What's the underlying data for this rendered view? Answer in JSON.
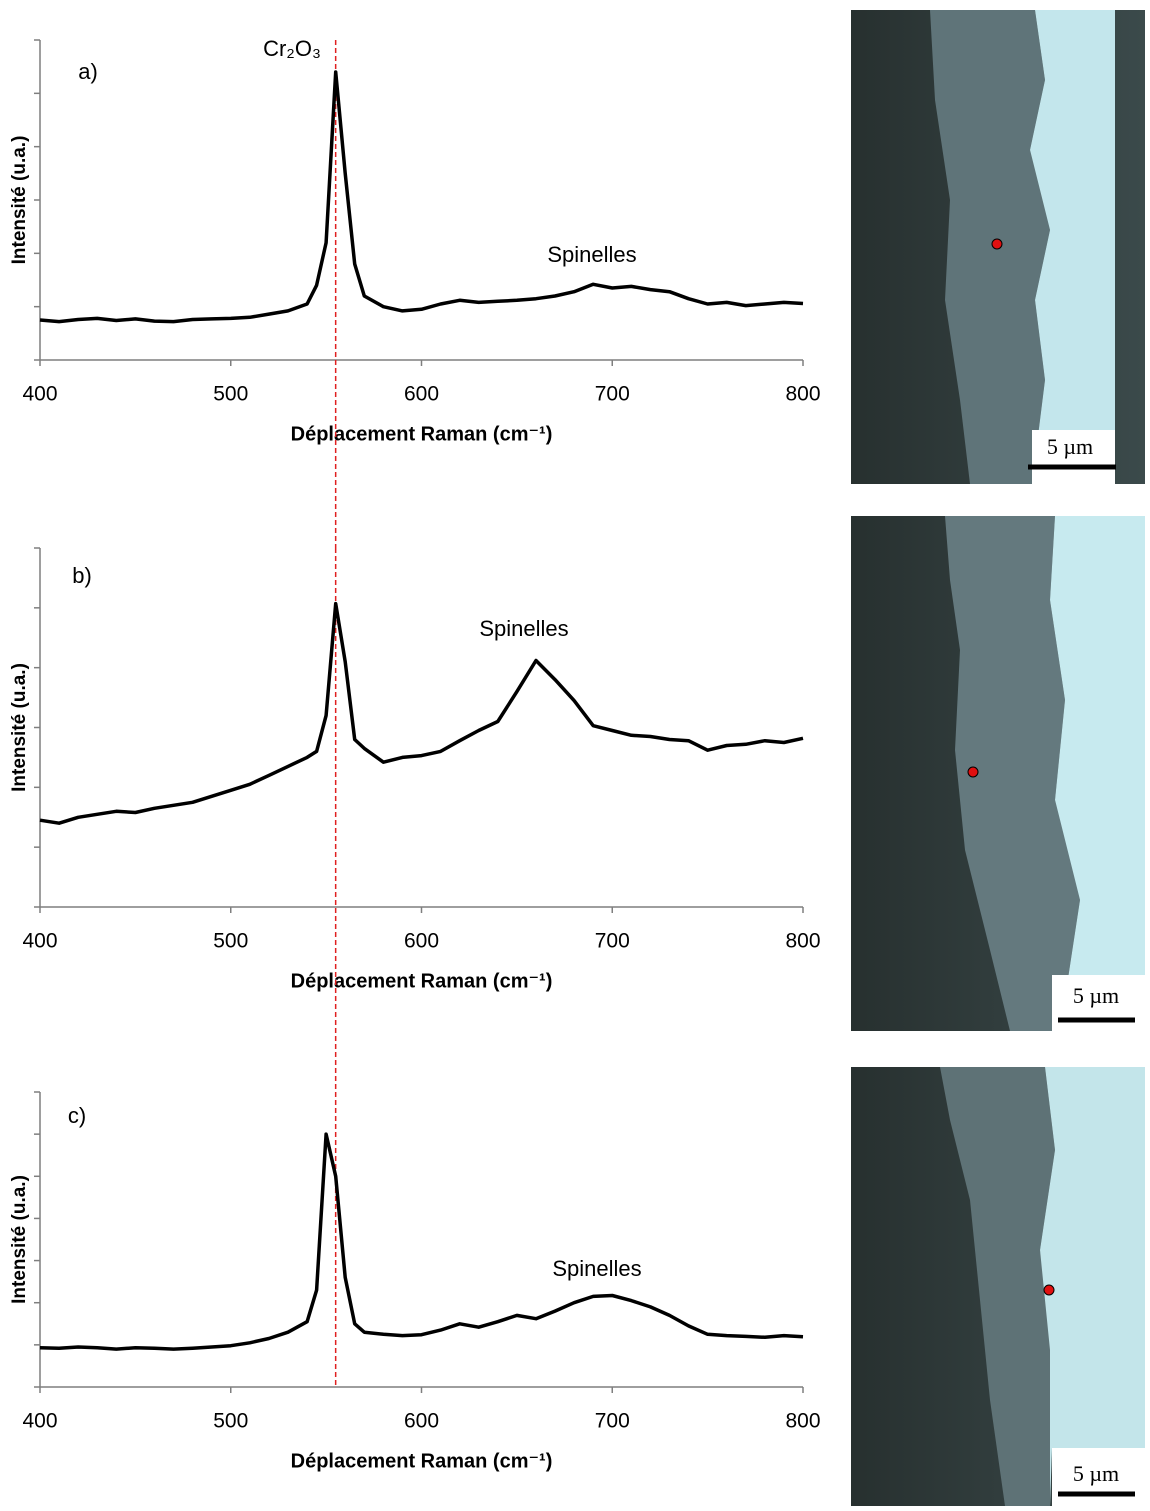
{
  "chart_data": [
    {
      "type": "line",
      "panel_label": "a)",
      "annotations": [
        "Cr₂O₃",
        "Spinelles"
      ],
      "x_label": "Déplacement Raman (cm⁻¹)",
      "y_label": "Intensité (u.a.)",
      "scale_bar_label": "5 µm",
      "x": [
        400,
        410,
        420,
        430,
        440,
        450,
        460,
        470,
        480,
        490,
        500,
        510,
        520,
        530,
        540,
        545,
        550,
        555,
        560,
        565,
        570,
        580,
        590,
        600,
        610,
        620,
        630,
        640,
        650,
        660,
        670,
        680,
        690,
        700,
        710,
        720,
        730,
        740,
        750,
        760,
        770,
        780,
        790,
        800
      ],
      "values": [
        0.75,
        0.72,
        0.76,
        0.78,
        0.74,
        0.77,
        0.73,
        0.72,
        0.76,
        0.77,
        0.78,
        0.8,
        0.86,
        0.92,
        1.05,
        1.4,
        2.2,
        5.4,
        3.5,
        1.8,
        1.2,
        1.0,
        0.92,
        0.95,
        1.05,
        1.12,
        1.08,
        1.1,
        1.12,
        1.15,
        1.2,
        1.28,
        1.42,
        1.35,
        1.38,
        1.32,
        1.28,
        1.15,
        1.05,
        1.08,
        1.02,
        1.05,
        1.08,
        1.06
      ],
      "color": "#000000",
      "vline": 555,
      "vline_color": "#e02020",
      "xlim": [
        400,
        800
      ],
      "xticks": [
        400,
        500,
        600,
        700,
        800
      ],
      "ylim": [
        0,
        6
      ],
      "yticks": [
        0,
        1,
        2,
        3,
        4,
        5,
        6
      ]
    },
    {
      "type": "line",
      "panel_label": "b)",
      "annotations": [
        "Spinelles"
      ],
      "x_label": "Déplacement Raman (cm⁻¹)",
      "y_label": "Intensité (u.a.)",
      "scale_bar_label": "5 µm",
      "x": [
        400,
        410,
        420,
        430,
        440,
        450,
        460,
        470,
        480,
        490,
        500,
        510,
        520,
        530,
        540,
        545,
        550,
        555,
        560,
        565,
        570,
        580,
        590,
        600,
        610,
        620,
        630,
        640,
        650,
        660,
        670,
        680,
        690,
        700,
        710,
        720,
        730,
        740,
        750,
        760,
        770,
        780,
        790,
        800
      ],
      "values": [
        1.45,
        1.4,
        1.5,
        1.55,
        1.6,
        1.58,
        1.65,
        1.7,
        1.75,
        1.85,
        1.95,
        2.05,
        2.2,
        2.35,
        2.5,
        2.6,
        3.2,
        5.07,
        4.1,
        2.8,
        2.65,
        2.42,
        2.5,
        2.53,
        2.6,
        2.78,
        2.95,
        3.1,
        3.6,
        4.12,
        3.8,
        3.45,
        3.03,
        2.95,
        2.87,
        2.85,
        2.8,
        2.78,
        2.62,
        2.7,
        2.72,
        2.78,
        2.75,
        2.82
      ],
      "color": "#000000",
      "vline": 555,
      "vline_color": "#e02020",
      "xlim": [
        400,
        800
      ],
      "xticks": [
        400,
        500,
        600,
        700,
        800
      ],
      "ylim": [
        0,
        6
      ],
      "yticks": [
        0,
        1,
        2,
        3,
        4,
        5,
        6
      ]
    },
    {
      "type": "line",
      "panel_label": "c)",
      "annotations": [
        "Spinelles"
      ],
      "x_label": "Déplacement Raman (cm⁻¹)",
      "y_label": "Intensité (u.a.)",
      "scale_bar_label": "5 µm",
      "x": [
        400,
        410,
        420,
        430,
        440,
        450,
        460,
        470,
        480,
        490,
        500,
        510,
        520,
        530,
        540,
        545,
        550,
        555,
        560,
        565,
        570,
        580,
        590,
        600,
        610,
        620,
        630,
        640,
        650,
        660,
        670,
        680,
        690,
        700,
        710,
        720,
        730,
        740,
        750,
        760,
        770,
        780,
        790,
        800
      ],
      "values": [
        0.93,
        0.92,
        0.95,
        0.93,
        0.9,
        0.93,
        0.92,
        0.9,
        0.92,
        0.95,
        0.98,
        1.05,
        1.15,
        1.3,
        1.55,
        2.3,
        6.0,
        5.0,
        2.6,
        1.5,
        1.3,
        1.25,
        1.22,
        1.24,
        1.35,
        1.5,
        1.42,
        1.55,
        1.7,
        1.62,
        1.8,
        2.0,
        2.15,
        2.17,
        2.05,
        1.9,
        1.7,
        1.45,
        1.25,
        1.22,
        1.2,
        1.18,
        1.22,
        1.19
      ],
      "color": "#000000",
      "vline": 555,
      "vline_color": "#e02020",
      "xlim": [
        400,
        800
      ],
      "xticks": [
        400,
        500,
        600,
        700,
        800
      ],
      "ylim": [
        0,
        7
      ],
      "yticks": [
        0,
        1,
        2,
        3,
        4,
        5,
        6,
        7
      ]
    }
  ]
}
